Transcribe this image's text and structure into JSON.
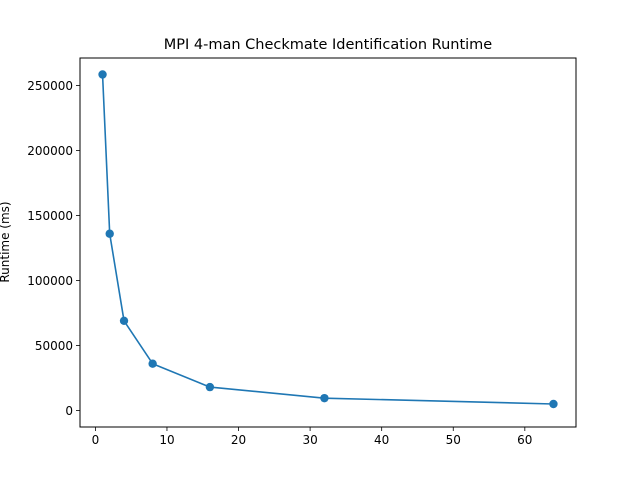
{
  "chart_data": {
    "type": "line",
    "title": "MPI 4-man Checkmate Identification Runtime",
    "xlabel": "",
    "ylabel": "Runtime (ms)",
    "x": [
      1,
      2,
      4,
      8,
      16,
      32,
      64
    ],
    "series": [
      {
        "values": [
          258500,
          136000,
          69000,
          36000,
          18000,
          9500,
          5000
        ]
      }
    ],
    "xlim": [
      -2.15,
      67.15
    ],
    "ylim": [
      -12700,
      271200
    ],
    "xticks": [
      0,
      10,
      20,
      30,
      40,
      50,
      60
    ],
    "xtick_labels": [
      "0",
      "10",
      "20",
      "30",
      "40",
      "50",
      "60"
    ],
    "yticks": [
      0,
      50000,
      100000,
      150000,
      200000,
      250000
    ],
    "ytick_labels": [
      "0",
      "50000",
      "100000",
      "150000",
      "200000",
      "250000"
    ],
    "grid": false,
    "colors": {
      "series": "#1f77b4",
      "axes": "#000000",
      "background": "#ffffff"
    }
  }
}
